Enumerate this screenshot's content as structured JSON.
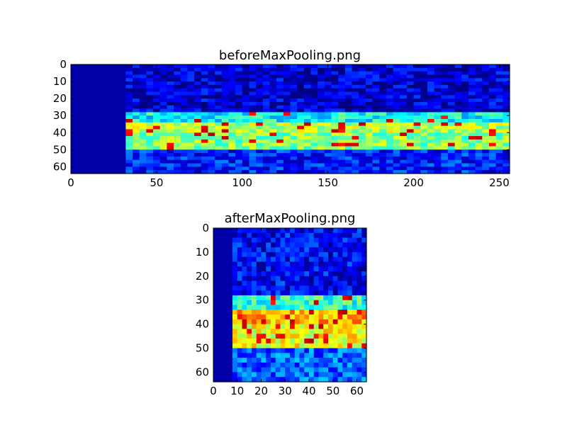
{
  "figure": {
    "background": "#ffffff"
  },
  "chart_data": [
    {
      "type": "heatmap",
      "title": "beforeMaxPooling.png",
      "xlabel": "",
      "ylabel": "",
      "xlim": [
        0,
        256
      ],
      "ylim": [
        64,
        0
      ],
      "xticks": [
        "0",
        "50",
        "100",
        "150",
        "200",
        "250"
      ],
      "yticks": [
        "0",
        "10",
        "20",
        "30",
        "40",
        "50",
        "60"
      ],
      "colormap": "jet",
      "grid": false,
      "image_shape": [
        64,
        256
      ],
      "silence_until_x": 34,
      "structure": [
        {
          "rows": [
            0,
            28
          ],
          "level": 0.08
        },
        {
          "rows": [
            29,
            34
          ],
          "level": 0.38
        },
        {
          "rows": [
            35,
            39
          ],
          "level": 0.55
        },
        {
          "rows": [
            40,
            49
          ],
          "level": 0.5
        },
        {
          "rows": [
            50,
            63
          ],
          "level": 0.15
        }
      ]
    },
    {
      "type": "heatmap",
      "title": "afterMaxPooling.png",
      "xlabel": "",
      "ylabel": "",
      "xlim": [
        0,
        64
      ],
      "ylim": [
        64,
        0
      ],
      "xticks": [
        "0",
        "10",
        "20",
        "30",
        "40",
        "50",
        "60"
      ],
      "yticks": [
        "0",
        "10",
        "20",
        "30",
        "40",
        "50",
        "60"
      ],
      "colormap": "jet",
      "grid": false,
      "image_shape": [
        64,
        64
      ],
      "silence_until_x": 8,
      "structure": [
        {
          "rows": [
            0,
            28
          ],
          "level": 0.12
        },
        {
          "rows": [
            29,
            34
          ],
          "level": 0.42
        },
        {
          "rows": [
            35,
            39
          ],
          "level": 0.7
        },
        {
          "rows": [
            40,
            49
          ],
          "level": 0.62
        },
        {
          "rows": [
            50,
            63
          ],
          "level": 0.22
        }
      ]
    }
  ]
}
